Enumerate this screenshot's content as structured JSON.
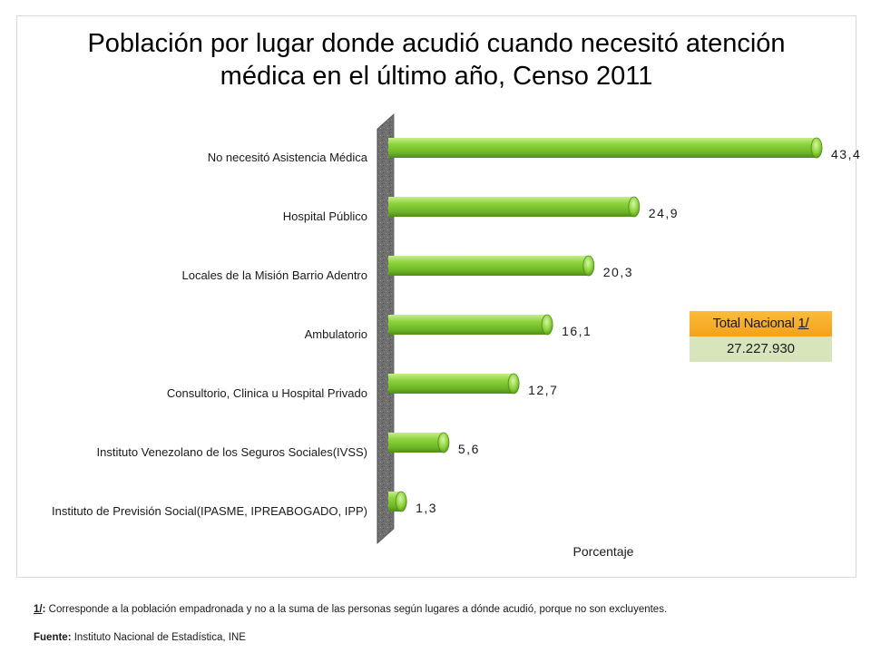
{
  "chart_data": {
    "type": "bar",
    "orientation": "horizontal",
    "title": "Población por lugar donde acudió cuando necesitó atención médica en el último año, Censo 2011",
    "title_lines": [
      "Población por lugar donde acudió cuando necesitó atención",
      "médica en el último año, Censo 2011"
    ],
    "xlabel": "Porcentaje",
    "ylabel": "",
    "xlim": [
      0,
      45
    ],
    "categories": [
      "No necesitó Asistencia Médica",
      "Hospital Público",
      "Locales de la Misión Barrio Adentro",
      "Ambulatorio",
      "Consultorio, Clinica u Hospital Privado",
      "Instituto Venezolano de los Seguros Sociales(IVSS)",
      "Instituto de Previsión Social(IPASME,  IPREABOGADO,  IPP)"
    ],
    "values": [
      43.4,
      24.9,
      20.3,
      16.1,
      12.7,
      5.6,
      1.3
    ],
    "data_labels": [
      "43,4",
      "24,9",
      "20,3",
      "16,1",
      "12,7",
      "5,6",
      "1,3"
    ],
    "bar_color": "#8bd23a",
    "grid": false,
    "legend": "none"
  },
  "total_box": {
    "label": "Total Nacional",
    "ref": "1/",
    "value": "27.227.930",
    "header_color": "#f9a825",
    "value_color": "#d8e4bc"
  },
  "footnote": {
    "tag": "1/",
    "colon": ":",
    "text": " Corresponde  a la población empadronada  y no a la suma de las personas  según lugares  a dónde acudió, porque  no son excluyentes."
  },
  "source": {
    "label": "Fuente:",
    "text": " Instituto Nacional de Estadística, INE"
  }
}
